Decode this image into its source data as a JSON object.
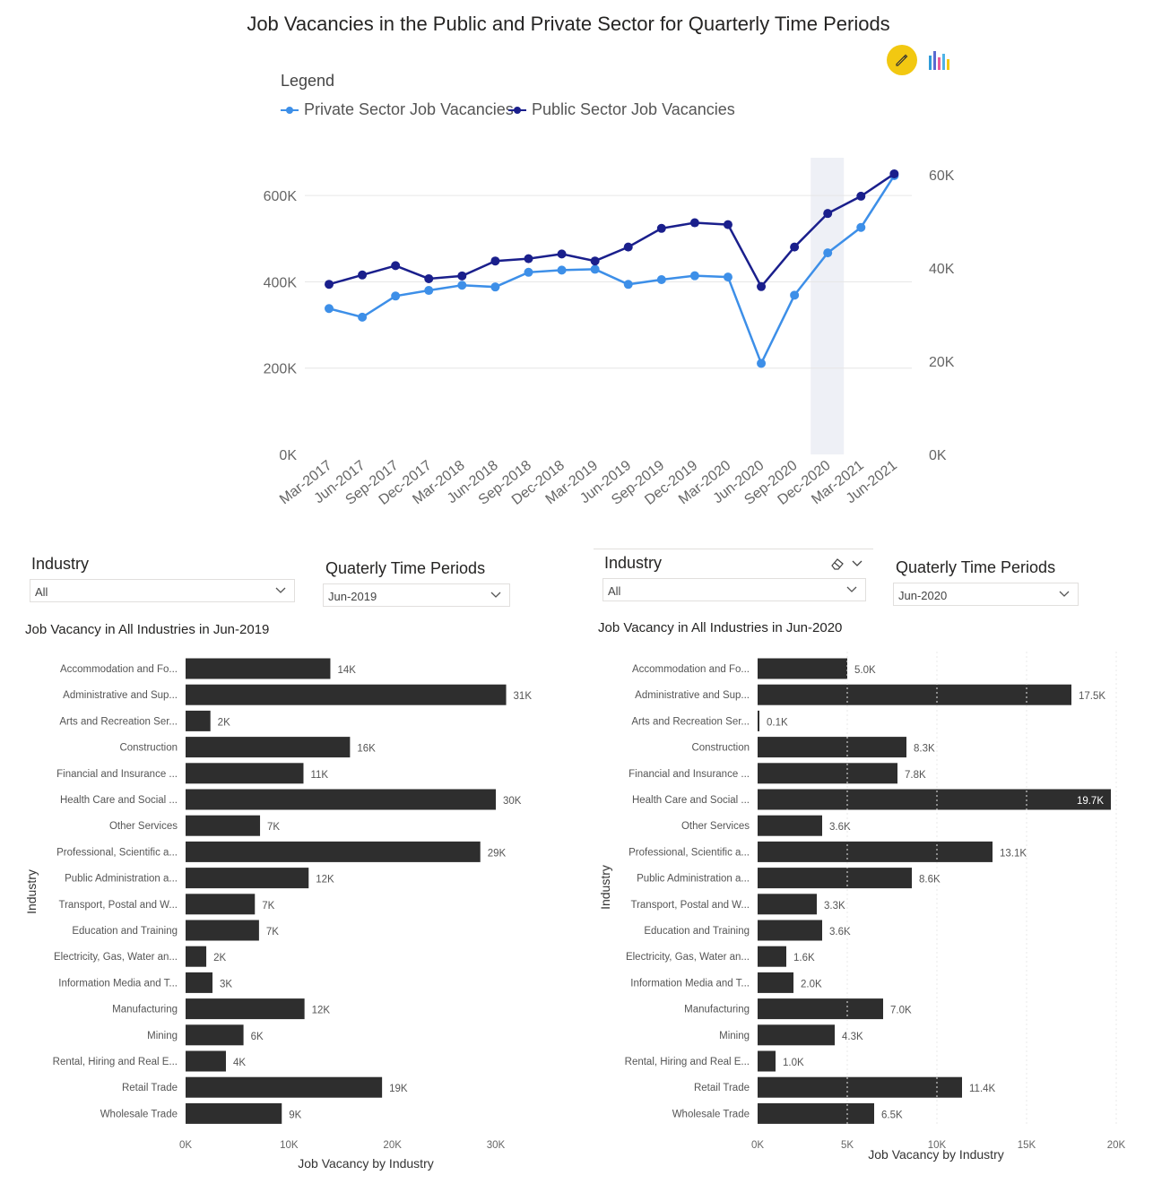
{
  "title": "Job Vacancies in the Public and Private Sector for Quarterly Time Periods",
  "icons": {
    "edit": "pencil-icon",
    "visual": "bar-chart-icon",
    "eraser": "eraser-icon",
    "chevron": "chevron-down-icon"
  },
  "colors": {
    "private": "#3d8fe8",
    "public": "#1a1f8c",
    "bar": "#2e2e2e",
    "highlight": "#eef0f6",
    "edit_button": "#f2c811"
  },
  "legend": {
    "title": "Legend",
    "items": [
      "Private Sector Job Vacancies",
      "Public Sector Job Vacancies"
    ]
  },
  "slicers": {
    "left": {
      "industry_label": "Industry",
      "industry_value": "All",
      "period_label": "Quaterly Time Periods",
      "period_value": "Jun-2019"
    },
    "right": {
      "industry_label": "Industry",
      "industry_value": "All",
      "period_label": "Quaterly Time Periods",
      "period_value": "Jun-2020"
    }
  },
  "chart_data": [
    {
      "type": "line",
      "title": "Job Vacancies in the Public and Private Sector for Quarterly Time Periods",
      "categories": [
        "Mar-2017",
        "Jun-2017",
        "Sep-2017",
        "Dec-2017",
        "Mar-2018",
        "Jun-2018",
        "Sep-2018",
        "Dec-2018",
        "Mar-2019",
        "Jun-2019",
        "Sep-2019",
        "Dec-2019",
        "Mar-2020",
        "Jun-2020",
        "Sep-2020",
        "Dec-2020",
        "Mar-2021",
        "Jun-2021"
      ],
      "highlighted_category": "Dec-2020",
      "y_left": {
        "ticks": [
          "0K",
          "200K",
          "400K",
          "600K"
        ],
        "lim": [
          0,
          660000
        ]
      },
      "y_right": {
        "ticks": [
          "0K",
          "20K",
          "40K",
          "60K"
        ],
        "lim": [
          0,
          60000
        ]
      },
      "series": [
        {
          "name": "Private Sector Job Vacancies",
          "axis": "left",
          "values": [
            338000,
            318000,
            367000,
            380000,
            392000,
            388000,
            422000,
            427000,
            429000,
            394000,
            405000,
            414000,
            411000,
            211000,
            369000,
            467000,
            526000,
            646000
          ]
        },
        {
          "name": "Public Sector Job Vacancies",
          "axis": "right",
          "values": [
            36500,
            38500,
            40500,
            37700,
            38300,
            41500,
            42000,
            43000,
            41500,
            44500,
            48500,
            49700,
            49300,
            36000,
            44500,
            51700,
            55400,
            60200
          ]
        }
      ],
      "grid": true,
      "legend_position": "top-left"
    },
    {
      "type": "bar",
      "title": "Job Vacancy in All Industries in Jun-2019",
      "ylabel": "Industry",
      "xlabel": "Job Vacancy by Industry",
      "xlim": [
        0,
        33000
      ],
      "xticks": [
        "0K",
        "10K",
        "20K",
        "30K"
      ],
      "categories": [
        "Accommodation and Fo...",
        "Administrative and Sup...",
        "Arts and Recreation Ser...",
        "Construction",
        "Financial and Insurance ...",
        "Health Care and Social ...",
        "Other Services",
        "Professional, Scientific a...",
        "Public Administration a...",
        "Transport, Postal and W...",
        "Education and Training",
        "Electricity, Gas, Water an...",
        "Information Media and T...",
        "Manufacturing",
        "Mining",
        "Rental, Hiring and Real E...",
        "Retail Trade",
        "Wholesale Trade"
      ],
      "values": [
        14000,
        31000,
        2400,
        15900,
        11400,
        30000,
        7200,
        28500,
        11900,
        6700,
        7100,
        2000,
        2600,
        11500,
        5600,
        3900,
        19000,
        9300
      ],
      "labels": [
        "14K",
        "31K",
        "2K",
        "16K",
        "11K",
        "30K",
        "7K",
        "29K",
        "12K",
        "7K",
        "7K",
        "2K",
        "3K",
        "12K",
        "6K",
        "4K",
        "19K",
        "9K"
      ]
    },
    {
      "type": "bar",
      "title": "Job Vacancy in All Industries in Jun-2020",
      "ylabel": "Industry",
      "xlabel": "Job Vacancy by Industry",
      "xlim": [
        0,
        20000
      ],
      "xticks": [
        "0K",
        "5K",
        "10K",
        "15K",
        "20K"
      ],
      "categories": [
        "Accommodation and Fo...",
        "Administrative and Sup...",
        "Arts and Recreation Ser...",
        "Construction",
        "Financial and Insurance ...",
        "Health Care and Social ...",
        "Other Services",
        "Professional, Scientific a...",
        "Public Administration a...",
        "Transport, Postal and W...",
        "Education and Training",
        "Electricity, Gas, Water an...",
        "Information Media and T...",
        "Manufacturing",
        "Mining",
        "Rental, Hiring and Real E...",
        "Retail Trade",
        "Wholesale Trade"
      ],
      "values": [
        5000,
        17500,
        100,
        8300,
        7800,
        19700,
        3600,
        13100,
        8600,
        3300,
        3600,
        1600,
        2000,
        7000,
        4300,
        1000,
        11400,
        6500
      ],
      "labels": [
        "5.0K",
        "17.5K",
        "0.1K",
        "8.3K",
        "7.8K",
        "19.7K",
        "3.6K",
        "13.1K",
        "8.6K",
        "3.3K",
        "3.6K",
        "1.6K",
        "2.0K",
        "7.0K",
        "4.3K",
        "1.0K",
        "11.4K",
        "6.5K"
      ]
    }
  ]
}
